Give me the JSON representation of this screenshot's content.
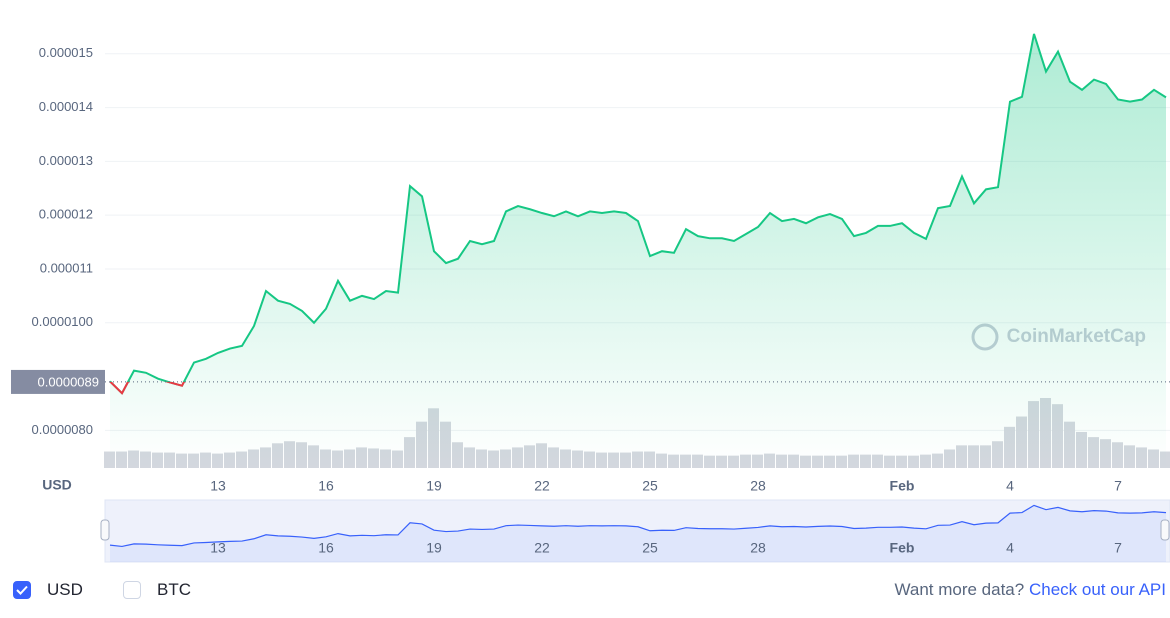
{
  "chart_data": {
    "type": "line",
    "categories": [
      null,
      null,
      null,
      null,
      null,
      null,
      null,
      null,
      null,
      "13",
      null,
      null,
      null,
      null,
      null,
      null,
      null,
      null,
      "16",
      null,
      null,
      null,
      null,
      null,
      null,
      null,
      null,
      "19",
      null,
      null,
      null,
      null,
      null,
      null,
      null,
      null,
      "22",
      null,
      null,
      null,
      null,
      null,
      null,
      null,
      null,
      "25",
      null,
      null,
      null,
      null,
      null,
      null,
      null,
      null,
      "28",
      null,
      null,
      null,
      null,
      null,
      null,
      null,
      null,
      null,
      null,
      null,
      "Feb",
      null,
      null,
      null,
      null,
      null,
      null,
      null,
      null,
      "4",
      null,
      null,
      null,
      null,
      null,
      null,
      null,
      null,
      "7",
      null,
      null,
      null,
      null
    ],
    "series": [
      {
        "name": "USD",
        "color": "#16c784",
        "down_color": "#ea3943",
        "values": [
          8.91e-06,
          8.69e-06,
          9.11e-06,
          9.07e-06,
          8.96e-06,
          8.89e-06,
          8.83e-06,
          9.26e-06,
          9.33e-06,
          9.44e-06,
          9.52e-06,
          9.57e-06,
          9.94e-06,
          1.059e-05,
          1.041e-05,
          1.035e-05,
          1.022e-05,
          1e-05,
          1.026e-05,
          1.078e-05,
          1.041e-05,
          1.05e-05,
          1.044e-05,
          1.059e-05,
          1.056e-05,
          1.254e-05,
          1.235e-05,
          1.133e-05,
          1.111e-05,
          1.119e-05,
          1.152e-05,
          1.146e-05,
          1.152e-05,
          1.207e-05,
          1.217e-05,
          1.211e-05,
          1.204e-05,
          1.198e-05,
          1.207e-05,
          1.198e-05,
          1.207e-05,
          1.204e-05,
          1.207e-05,
          1.204e-05,
          1.189e-05,
          1.124e-05,
          1.133e-05,
          1.13e-05,
          1.174e-05,
          1.161e-05,
          1.157e-05,
          1.157e-05,
          1.152e-05,
          1.165e-05,
          1.178e-05,
          1.204e-05,
          1.189e-05,
          1.193e-05,
          1.185e-05,
          1.196e-05,
          1.202e-05,
          1.193e-05,
          1.161e-05,
          1.167e-05,
          1.18e-05,
          1.18e-05,
          1.185e-05,
          1.167e-05,
          1.156e-05,
          1.213e-05,
          1.217e-05,
          1.272e-05,
          1.222e-05,
          1.248e-05,
          1.252e-05,
          1.411e-05,
          1.42e-05,
          1.537e-05,
          1.467e-05,
          1.504e-05,
          1.448e-05,
          1.433e-05,
          1.452e-05,
          1.444e-05,
          1.415e-05,
          1.411e-05,
          1.415e-05,
          1.433e-05,
          1.419e-05
        ]
      }
    ],
    "volume": {
      "color": "#d3d7de",
      "values": [
        16,
        16,
        17,
        16,
        15,
        15,
        14,
        14,
        15,
        14,
        15,
        16,
        18,
        20,
        24,
        26,
        25,
        22,
        18,
        17,
        18,
        20,
        19,
        18,
        17,
        30,
        45,
        58,
        45,
        25,
        20,
        18,
        17,
        18,
        20,
        22,
        24,
        20,
        18,
        17,
        16,
        15,
        15,
        15,
        16,
        16,
        14,
        13,
        13,
        13,
        12,
        12,
        12,
        13,
        13,
        14,
        13,
        13,
        12,
        12,
        12,
        12,
        13,
        13,
        13,
        12,
        12,
        12,
        13,
        14,
        18,
        22,
        22,
        22,
        26,
        40,
        50,
        65,
        68,
        62,
        45,
        35,
        30,
        28,
        25,
        22,
        20,
        18,
        16
      ]
    },
    "ylim": [
      7.3e-06,
      1.6e-05
    ],
    "yticks": [
      {
        "value": 8e-06,
        "label": "0.0000080"
      },
      {
        "value": 1e-05,
        "label": "0.0000100"
      },
      1.1e-05,
      1.2e-05,
      1.3e-05,
      1.4e-05,
      1.5e-05
    ],
    "reference_line": 8.9e-06,
    "y_axis_label": "USD",
    "grid": true,
    "watermark": "CoinMarketCap",
    "navigator": {
      "color": "#3861fb"
    },
    "toggles": [
      {
        "label": "USD",
        "checked": true
      },
      {
        "label": "BTC",
        "checked": false
      }
    ],
    "footer": {
      "text": "Want more data?",
      "link": "Check out our API"
    }
  }
}
